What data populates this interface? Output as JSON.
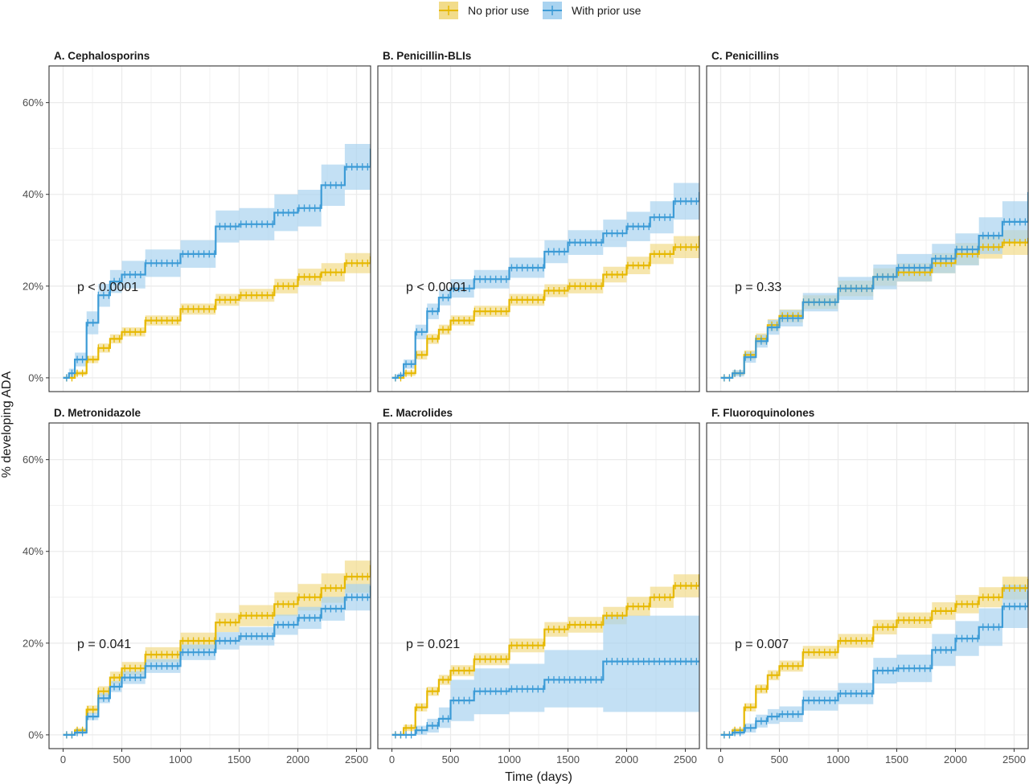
{
  "legend": {
    "items": [
      {
        "label": "No prior use",
        "color": "#E6B800"
      },
      {
        "label": "With prior use",
        "color": "#3C9BD6"
      }
    ]
  },
  "axes": {
    "xlabel": "Time (days)",
    "ylabel": "% developing ADA",
    "xlim": [
      -120,
      2620
    ],
    "ylim": [
      -3,
      68
    ],
    "xticks": [
      0,
      500,
      1000,
      1500,
      2000,
      2500
    ],
    "xtick_labels": [
      "0",
      "500",
      "1000",
      "1500",
      "2000",
      "2500"
    ],
    "yticks": [
      0,
      20,
      40,
      60
    ],
    "ytick_labels": [
      "0%",
      "20%",
      "40%",
      "60%"
    ]
  },
  "colors": {
    "no_prior": "#E6B800",
    "with_prior": "#3C9BD6",
    "no_prior_band": "#F2DC8A",
    "with_prior_band": "#A9D3F0",
    "grid": "#EBEBEB",
    "panel_border": "#333333"
  },
  "chart_data": [
    {
      "type": "line",
      "title": "A.  Cephalosporins",
      "pvalue": "p < 0.0001",
      "x": [
        0,
        50,
        100,
        200,
        300,
        400,
        500,
        700,
        1000,
        1300,
        1500,
        1800,
        2000,
        2200,
        2400,
        2620
      ],
      "series": [
        {
          "name": "No prior use",
          "values": [
            0,
            0,
            1,
            4,
            6.5,
            8.5,
            10,
            12.5,
            15,
            17,
            18,
            20,
            22,
            23,
            25,
            26.5
          ],
          "lower": [
            0,
            0,
            0.5,
            3.2,
            5.5,
            7.5,
            9,
            11.4,
            13.8,
            15.7,
            16.6,
            18.4,
            20.2,
            21,
            22.8,
            24
          ],
          "upper": [
            0,
            0,
            1.5,
            4.8,
            7.5,
            9.5,
            11,
            13.6,
            16.2,
            18.3,
            19.4,
            21.6,
            23.8,
            25,
            27.2,
            29.5
          ]
        },
        {
          "name": "With prior use",
          "values": [
            0,
            1,
            4,
            12,
            18,
            21,
            22.5,
            25,
            27,
            33,
            33.5,
            36,
            37,
            42,
            46,
            50
          ],
          "lower": [
            0,
            0,
            2.5,
            9.5,
            15.5,
            18.5,
            19.5,
            22,
            24,
            29.5,
            30,
            32,
            33,
            37.5,
            41,
            44.5
          ],
          "upper": [
            0,
            2,
            5.5,
            14.5,
            20.5,
            23.5,
            25.5,
            28,
            30,
            36.5,
            37,
            40,
            41,
            46.5,
            51,
            56
          ]
        }
      ]
    },
    {
      "type": "line",
      "title": "B.  Penicillin-BLIs",
      "pvalue": "p < 0.0001",
      "x": [
        0,
        50,
        100,
        200,
        300,
        400,
        500,
        700,
        1000,
        1300,
        1500,
        1800,
        2000,
        2200,
        2400,
        2620
      ],
      "series": [
        {
          "name": "No prior use",
          "values": [
            0,
            0,
            1,
            5,
            8.5,
            10.5,
            12.5,
            14.5,
            17,
            19,
            20,
            22.5,
            24.5,
            27,
            28.5,
            31
          ],
          "lower": [
            0,
            0,
            0.4,
            4,
            7.4,
            9.4,
            11.4,
            13.3,
            15.7,
            17.6,
            18.4,
            20.8,
            22.6,
            24.8,
            26.1,
            28
          ],
          "upper": [
            0,
            0,
            1.6,
            6,
            9.6,
            11.6,
            13.6,
            15.7,
            18.3,
            20.4,
            21.6,
            24.2,
            26.4,
            29.2,
            30.9,
            34
          ]
        },
        {
          "name": "With prior use",
          "values": [
            0,
            0.5,
            3,
            10,
            14.5,
            17.5,
            19.5,
            21.5,
            24,
            27.5,
            29.5,
            31.5,
            33,
            35,
            38.5,
            40.5
          ],
          "lower": [
            0,
            0,
            2,
            8.4,
            12.8,
            15.8,
            17.5,
            19.5,
            21.8,
            25,
            26.8,
            28.5,
            29.8,
            31.5,
            34.5,
            35.5
          ],
          "upper": [
            0,
            1,
            4,
            11.6,
            16.2,
            19.2,
            21.5,
            23.5,
            26.2,
            30,
            32.2,
            34.5,
            36.2,
            38.5,
            42.5,
            45.5
          ]
        }
      ]
    },
    {
      "type": "line",
      "title": "C.  Penicillins",
      "pvalue": "p = 0.33",
      "x": [
        0,
        50,
        100,
        200,
        300,
        400,
        500,
        700,
        1000,
        1300,
        1500,
        1800,
        2000,
        2200,
        2400,
        2620
      ],
      "series": [
        {
          "name": "No prior use",
          "values": [
            0,
            0,
            1,
            5,
            8.5,
            11.5,
            13.5,
            16.5,
            19.5,
            22,
            23,
            25,
            27,
            28.5,
            29.5,
            30.5
          ],
          "lower": [
            0,
            0,
            0.5,
            4,
            7.3,
            10.2,
            12.1,
            15,
            17.8,
            20.1,
            21,
            22.8,
            24.6,
            26,
            26.8,
            27.5
          ],
          "upper": [
            0,
            0,
            1.5,
            6,
            9.7,
            12.8,
            14.9,
            18,
            21.2,
            23.9,
            25,
            27.2,
            29.4,
            31,
            32.2,
            33.5
          ]
        },
        {
          "name": "With prior use",
          "values": [
            0,
            0,
            1,
            4.5,
            8,
            11,
            13,
            16.5,
            19.5,
            22,
            24,
            26,
            28,
            31,
            34,
            40.5
          ],
          "lower": [
            0,
            0,
            0.3,
            3.3,
            6.6,
            9.4,
            11.2,
            14.5,
            17,
            19.3,
            21,
            22.8,
            24.5,
            27,
            29.5,
            35.5
          ],
          "upper": [
            0,
            0,
            1.7,
            5.7,
            9.4,
            12.6,
            14.8,
            18.5,
            22,
            24.7,
            27,
            29.2,
            31.5,
            35,
            38.5,
            45.5
          ]
        }
      ]
    },
    {
      "type": "line",
      "title": "D.  Metronidazole",
      "pvalue": "p = 0.041",
      "x": [
        0,
        50,
        100,
        200,
        300,
        400,
        500,
        700,
        1000,
        1300,
        1500,
        1800,
        2000,
        2200,
        2400,
        2620
      ],
      "series": [
        {
          "name": "No prior use",
          "values": [
            0,
            0,
            1,
            5.5,
            9.5,
            12.5,
            14.5,
            17.5,
            20.5,
            24.5,
            26,
            28.5,
            30,
            32,
            34.5,
            37
          ],
          "lower": [
            0,
            0,
            0.5,
            4.6,
            8.4,
            11.2,
            13.1,
            15.9,
            18.7,
            22.4,
            23.7,
            25.9,
            27.1,
            28.8,
            31,
            32.5
          ],
          "upper": [
            0,
            0,
            1.5,
            6.4,
            10.6,
            13.8,
            15.9,
            19.1,
            22.3,
            26.6,
            28.3,
            31.1,
            32.9,
            35.2,
            38,
            41.5
          ]
        },
        {
          "name": "With prior use",
          "values": [
            0,
            0,
            0.5,
            4,
            8,
            10.5,
            12.5,
            15,
            18,
            20.5,
            21.5,
            24,
            25.5,
            27.5,
            30,
            32.5
          ],
          "lower": [
            0,
            0,
            0.2,
            3.2,
            6.9,
            9.3,
            11.1,
            13.5,
            16.3,
            18.6,
            19.5,
            21.8,
            23.1,
            24.9,
            27.1,
            29.3
          ],
          "upper": [
            0,
            0,
            0.8,
            4.8,
            9.1,
            11.7,
            13.9,
            16.5,
            19.7,
            22.4,
            23.5,
            26.2,
            27.9,
            30.1,
            32.9,
            35.7
          ]
        }
      ]
    },
    {
      "type": "line",
      "title": "E.  Macrolides",
      "pvalue": "p = 0.021",
      "x": [
        0,
        50,
        100,
        200,
        300,
        400,
        500,
        700,
        1000,
        1300,
        1500,
        1800,
        2000,
        2200,
        2400,
        2620
      ],
      "series": [
        {
          "name": "No prior use",
          "values": [
            0,
            0,
            1.5,
            6,
            9.5,
            12,
            14,
            16.5,
            19.5,
            23,
            24,
            26,
            28,
            30,
            32.5,
            35
          ],
          "lower": [
            0,
            0,
            0.8,
            5.1,
            8.5,
            10.9,
            12.8,
            15.2,
            18,
            21.4,
            22.3,
            24.1,
            25.9,
            27.7,
            30,
            32
          ],
          "upper": [
            0,
            0,
            2.2,
            6.9,
            10.5,
            13.1,
            15.2,
            17.8,
            21,
            24.6,
            25.7,
            27.9,
            30.1,
            32.3,
            35,
            38
          ]
        },
        {
          "name": "With prior use",
          "values": [
            0,
            0,
            0,
            1,
            2,
            3.5,
            7.5,
            9.5,
            10,
            12,
            12,
            16,
            16,
            16,
            16,
            16
          ],
          "lower": [
            0,
            0,
            0,
            0,
            0.5,
            1.5,
            3,
            4.5,
            5,
            6,
            6,
            5,
            5,
            5,
            5,
            5
          ],
          "upper": [
            0,
            0,
            0,
            2,
            3.5,
            6,
            12,
            14.5,
            15.5,
            18.5,
            18.5,
            26,
            26,
            26,
            26,
            26
          ]
        }
      ]
    },
    {
      "type": "line",
      "title": "F.  Fluoroquinolones",
      "pvalue": "p = 0.007",
      "x": [
        0,
        50,
        100,
        200,
        300,
        400,
        500,
        700,
        1000,
        1300,
        1500,
        1800,
        2000,
        2200,
        2400,
        2620
      ],
      "series": [
        {
          "name": "No prior use",
          "values": [
            0,
            0,
            1,
            6,
            10,
            13,
            15,
            18,
            20.5,
            23.5,
            25,
            27,
            28.5,
            30,
            32,
            34
          ],
          "lower": [
            0,
            0,
            0.5,
            5.1,
            9,
            11.9,
            13.8,
            16.6,
            19,
            21.9,
            23.3,
            25.1,
            26.5,
            27.8,
            29.5,
            31.3
          ],
          "upper": [
            0,
            0,
            1.5,
            6.9,
            11,
            14.1,
            16.2,
            19.4,
            22,
            25.1,
            26.7,
            28.9,
            30.5,
            32.2,
            34.5,
            36.7
          ]
        },
        {
          "name": "With prior use",
          "values": [
            0,
            0,
            0.5,
            1.5,
            3,
            4,
            4.5,
            7.5,
            9,
            14,
            14.5,
            18.5,
            21,
            23.5,
            28,
            31.5
          ],
          "lower": [
            0,
            0,
            0,
            0.5,
            1.6,
            2.4,
            2.8,
            5.3,
            6.7,
            11.2,
            11.5,
            15,
            17.2,
            19.4,
            23.3,
            25.5
          ],
          "upper": [
            0,
            0,
            1,
            2.5,
            4.4,
            5.6,
            6.2,
            9.7,
            11.3,
            16.8,
            17.5,
            22,
            24.8,
            27.6,
            32.7,
            37.5
          ]
        }
      ]
    }
  ]
}
